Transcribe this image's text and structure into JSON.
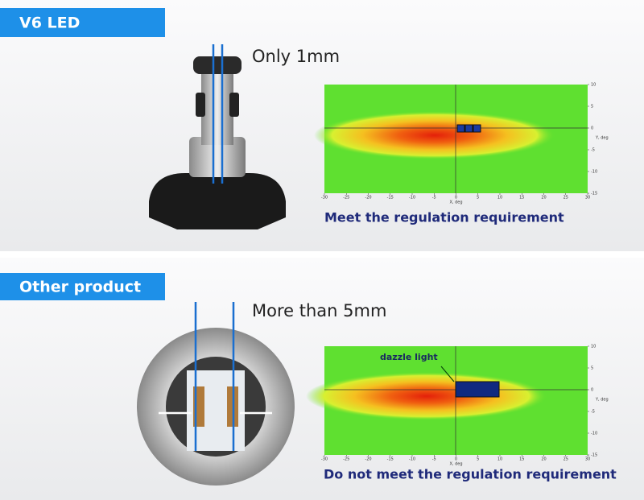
{
  "panels": [
    {
      "tag": "V6 LED",
      "gap_label": "Only 1mm",
      "verdict": "Meet the regulation requirement",
      "plot": {
        "x_label": "X, deg",
        "y_label": "Y, deg",
        "xticks": [
          -30,
          -25,
          -20,
          -15,
          -10,
          -5,
          0,
          5,
          10,
          15,
          20,
          25,
          30
        ],
        "yticks": [
          10,
          5,
          0,
          -5,
          -10,
          -15
        ]
      }
    },
    {
      "tag": "Other product",
      "gap_label": "More than 5mm",
      "annotation": "dazzle light",
      "verdict": "Do not meet the regulation requirement",
      "plot": {
        "x_label": "X, deg",
        "y_label": "Y, deg",
        "xticks": [
          -30,
          -25,
          -20,
          -15,
          -10,
          -5,
          0,
          5,
          10,
          15,
          20,
          25,
          30
        ],
        "yticks": [
          10,
          5,
          0,
          -5,
          -10,
          -15
        ]
      }
    }
  ]
}
